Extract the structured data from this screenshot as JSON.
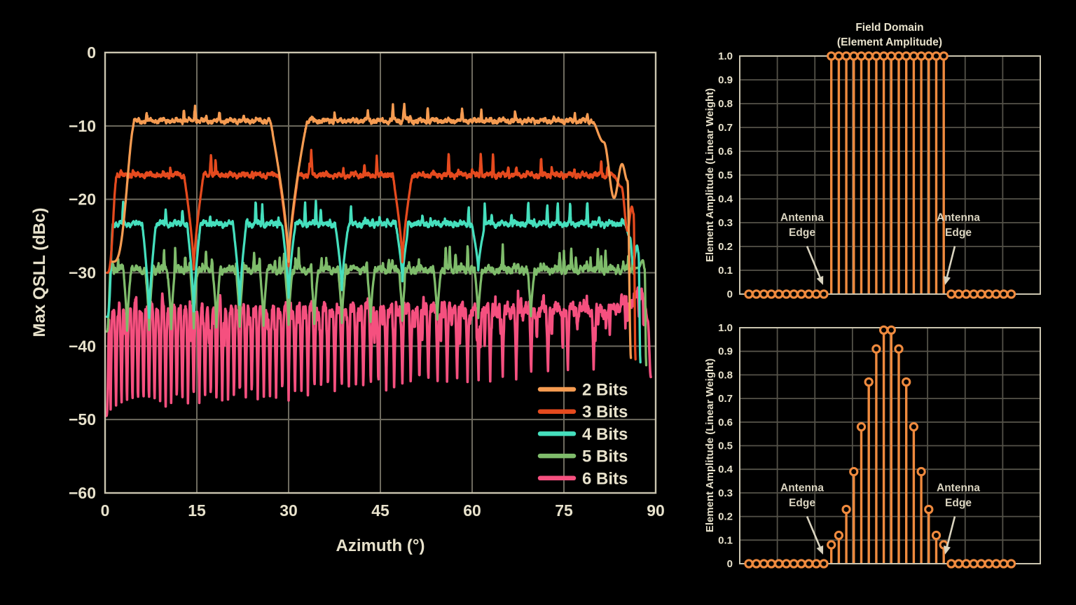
{
  "style": {
    "background": "#000000",
    "text_color": "#E8E2CC",
    "frame_color": "#CBC5B0",
    "grid_color_main": "#6E6B5F",
    "grid_color_side": "#545249",
    "stem_color": "#EF8A3E",
    "arrow_color": "#D9D3BF"
  },
  "chart_data": [
    {
      "id": "max-qsll-vs-azimuth",
      "type": "line",
      "title": "",
      "xlabel": "Azimuth (°)",
      "ylabel": "Max QSLL (dBc)",
      "xlim": [
        0,
        90
      ],
      "ylim": [
        -60,
        0
      ],
      "grid": true,
      "legend_position": "lower-right",
      "xticks": [
        0,
        15,
        30,
        45,
        60,
        75,
        90
      ],
      "xtick_labels": [
        "0",
        "15",
        "30",
        "45",
        "60",
        "75",
        "90"
      ],
      "yticks": [
        0,
        -10,
        -20,
        -30,
        -40,
        -50,
        -60
      ],
      "ytick_labels": [
        "0",
        "−10",
        "−20",
        "−30",
        "−40",
        "−50",
        "−60"
      ],
      "series": [
        {
          "name": "2 Bits",
          "color": "#F59B51",
          "plateau_dbc": -9.3,
          "notch_angles_deg": [
            30
          ],
          "notch_width_deg": 3.0,
          "notch_floor_dbc": -28.5,
          "notch_floor_slope_db_per_deg": 0,
          "start_deg": 1.2,
          "rise_end_deg": 4.9,
          "start_floor_dbc": -28.5,
          "rolloff_points": [
            [
              79.5,
              -9.3
            ],
            [
              81.5,
              -12.2
            ],
            [
              83.2,
              -19.8
            ],
            [
              84.5,
              -15.2
            ],
            [
              85.4,
              -17.5
            ],
            [
              85.95,
              -41.6
            ]
          ],
          "noise": {
            "ripple_db": 0.28,
            "spike_grid_deg": 3.0,
            "spike_prob": 0.75,
            "spike_max_db": 1.9,
            "down_spikes": false
          },
          "extra_spikes": [
            [
              14.7,
              2.1
            ],
            [
              48.9,
              2.2
            ]
          ],
          "noise_end_deg": 79.6,
          "line_width": 3.3
        },
        {
          "name": "3 Bits",
          "color": "#E54A1E",
          "plateau_dbc": -16.7,
          "notch_angles_deg": [
            14.5,
            30.0,
            48.6
          ],
          "notch_width_deg": 1.6,
          "notch_floor_dbc": -30,
          "notch_floor_slope_db_per_deg": 0.03,
          "start_deg": 0.3,
          "rise_end_deg": 1.9,
          "start_floor_dbc": -30,
          "rolloff_points": [
            [
              83.0,
              -16.7
            ],
            [
              84.4,
              -18.3
            ],
            [
              85.4,
              -24.3
            ],
            [
              86.1,
              -21.0
            ],
            [
              86.4,
              -22.0
            ],
            [
              86.7,
              -41.8
            ]
          ],
          "noise": {
            "ripple_db": 0.3,
            "spike_grid_deg": 1.9,
            "spike_prob": 0.8,
            "spike_max_db": 3.3,
            "down_spikes": false
          },
          "extra_spikes": [
            [
              17.3,
              3.2
            ],
            [
              33.7,
              3.2
            ],
            [
              61.4,
              3.0
            ]
          ],
          "noise_end_deg": 83.1,
          "line_width": 3.3
        },
        {
          "name": "4 Bits",
          "color": "#45DFBD",
          "plateau_dbc": -23.35,
          "notch_angles_deg": [
            7.2,
            14.5,
            22.0,
            30.0,
            38.7,
            48.6,
            61.0
          ],
          "notch_width_deg": 1.1,
          "notch_floor_dbc": -37,
          "notch_floor_slope_db_per_deg": 0.12,
          "start_deg": 0.3,
          "rise_end_deg": 1.3,
          "start_floor_dbc": -36,
          "rolloff_points": [
            [
              84.9,
              -23.4
            ],
            [
              85.8,
              -25.2
            ],
            [
              86.3,
              -28.8
            ],
            [
              86.95,
              -26.3
            ],
            [
              87.2,
              -27.3
            ],
            [
              87.5,
              -42.2
            ]
          ],
          "noise": {
            "ripple_db": 0.32,
            "spike_grid_deg": 1.2,
            "spike_prob": 0.8,
            "spike_max_db": 3.2,
            "down_spikes": false
          },
          "extra_spikes": [],
          "noise_end_deg": 85.0,
          "line_width": 3.3
        },
        {
          "name": "5 Bits",
          "color": "#7FBC6B",
          "plateau_dbc": -29.6,
          "notch_angles_deg": [
            3.6,
            7.2,
            10.8,
            14.5,
            18.2,
            22.0,
            25.9,
            30.0,
            34.2,
            38.7,
            43.4,
            48.6,
            54.3,
            61.0,
            69.6
          ],
          "notch_width_deg": 0.62,
          "notch_floor_dbc": -38,
          "notch_floor_slope_db_per_deg": 0.03,
          "start_deg": 0.25,
          "rise_end_deg": 0.9,
          "start_floor_dbc": -38,
          "rolloff_points": [
            [
              86.2,
              -29.6
            ],
            [
              87.2,
              -29.3
            ],
            [
              87.9,
              -28.3
            ],
            [
              88.2,
              -29.5
            ],
            [
              88.45,
              -42.6
            ]
          ],
          "noise": {
            "ripple_db": 0.42,
            "spike_grid_deg": 0.85,
            "spike_prob": 0.8,
            "spike_max_db": 3.3,
            "down_spikes": false
          },
          "extra_spikes": [],
          "noise_end_deg": 86.4,
          "line_width": 3.3
        },
        {
          "name": "6 Bits",
          "color": "#F5507F",
          "plateau_dbc": -35.2,
          "notch_rule": "asin(n/64)",
          "notch_den": 64,
          "notch_width_deg": 0.28,
          "notch_floor_dbc": -49.5,
          "notch_floor_slope_db_per_deg": 0.07,
          "start_deg": 0.2,
          "rise_end_deg": 0.7,
          "start_floor_dbc": -49.5,
          "rolloff_points": [
            [
              82.5,
              -35.0
            ],
            [
              85.5,
              -34.1
            ],
            [
              87.3,
              -33.0
            ],
            [
              88.0,
              -33.0
            ],
            [
              88.7,
              -36.5
            ],
            [
              89.2,
              -44.2
            ]
          ],
          "noise": {
            "ripple_db": 0.75,
            "spike_grid_deg": 0.6,
            "spike_prob": 0.7,
            "spike_max_db": 2.0,
            "down_spikes": true
          },
          "extra_spikes": [],
          "noise_end_deg": 88.0,
          "line_width": 3.6
        }
      ]
    },
    {
      "id": "field-domain-uniform",
      "type": "stem",
      "title_lines": [
        "Field Domain",
        "(Element Amplitude)"
      ],
      "ylabel": "Element Amplitude (Linear Weight)",
      "ylim": [
        0,
        1
      ],
      "ytick_labels": [
        "1.0",
        "0.9",
        "0.8",
        "0.7",
        "0.6",
        "0.5",
        "0.4",
        "0.3",
        "0.2",
        "0.1",
        "0"
      ],
      "grid": true,
      "n_elements": 36,
      "values": [
        0,
        0,
        0,
        0,
        0,
        0,
        0,
        0,
        0,
        0,
        0,
        1,
        1,
        1,
        1,
        1,
        1,
        1,
        1,
        1,
        1,
        1,
        1,
        1,
        1,
        1,
        1,
        0,
        0,
        0,
        0,
        0,
        0,
        0,
        0,
        0
      ],
      "annotations": [
        {
          "lines": [
            "Antenna",
            "Edge"
          ],
          "side": "left"
        },
        {
          "lines": [
            "Antenna",
            "Edge"
          ],
          "side": "right"
        }
      ]
    },
    {
      "id": "field-domain-tapered",
      "type": "stem",
      "title_lines": [
        "",
        ""
      ],
      "ylabel": "Element Amplitude (Linear Weight)",
      "ylim": [
        0,
        1
      ],
      "ytick_labels": [
        "1.0",
        "0.9",
        "0.8",
        "0.7",
        "0.6",
        "0.5",
        "0.4",
        "0.3",
        "0.2",
        "0.1",
        "0"
      ],
      "grid": true,
      "n_elements": 36,
      "values": [
        0,
        0,
        0,
        0,
        0,
        0,
        0,
        0,
        0,
        0,
        0,
        0.08,
        0.12,
        0.23,
        0.39,
        0.58,
        0.77,
        0.91,
        0.99,
        0.99,
        0.91,
        0.77,
        0.58,
        0.39,
        0.23,
        0.12,
        0.08,
        0,
        0,
        0,
        0,
        0,
        0,
        0,
        0,
        0
      ],
      "annotations": [
        {
          "lines": [
            "Antenna",
            "Edge"
          ],
          "side": "left"
        },
        {
          "lines": [
            "Antenna",
            "Edge"
          ],
          "side": "right"
        }
      ]
    }
  ]
}
